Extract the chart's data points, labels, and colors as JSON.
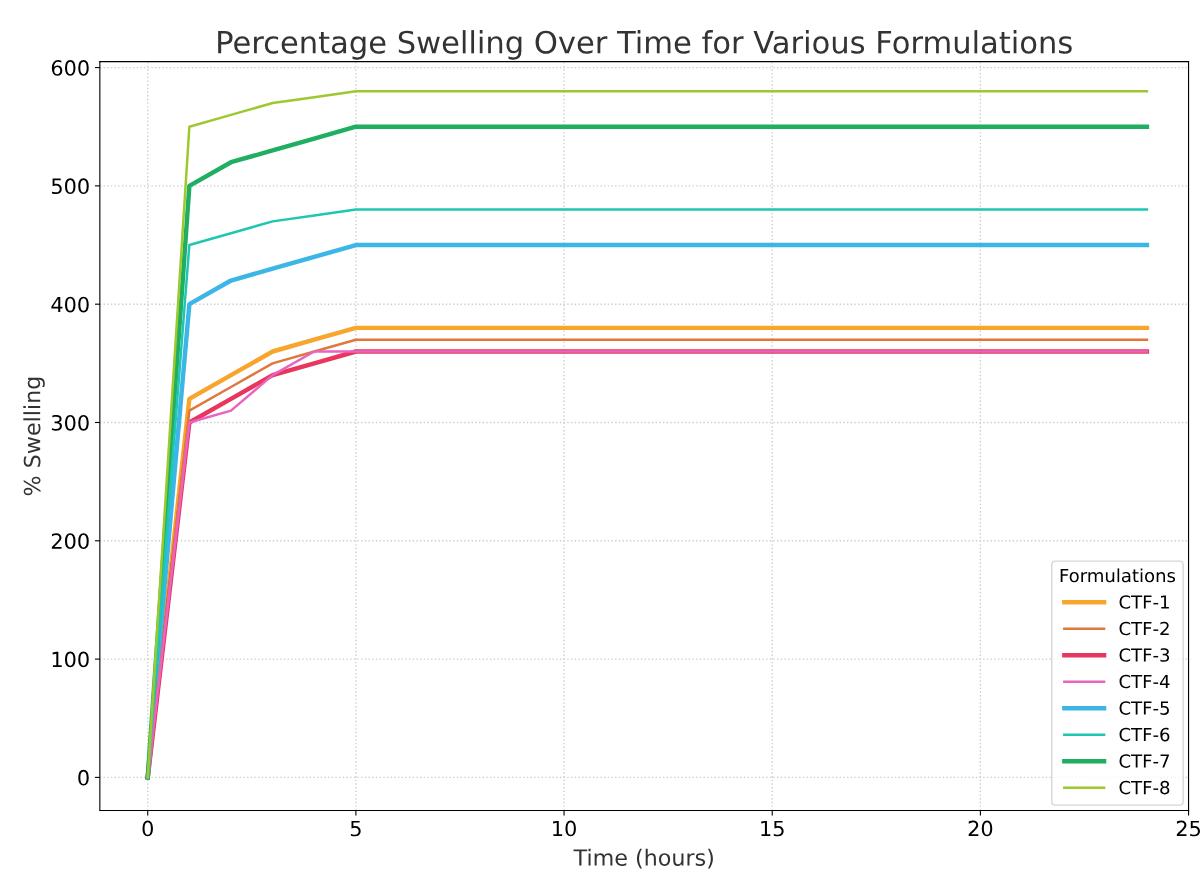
{
  "chart_data": {
    "type": "line",
    "title": "Percentage Swelling Over Time for Various Formulations",
    "xlabel": "Time (hours)",
    "ylabel": "% Swelling",
    "legend_title": "Formulations",
    "legend": "bottom right",
    "grid": true,
    "line_style": "solid",
    "x": [
      0,
      1,
      2,
      3,
      4,
      5,
      24
    ],
    "xlim": [
      -1.15,
      25
    ],
    "xticks": [
      0,
      5,
      10,
      15,
      20,
      25
    ],
    "ylim": [
      -28,
      605
    ],
    "yticks": [
      0,
      100,
      200,
      300,
      400,
      500,
      600
    ],
    "series": [
      {
        "name": "CTF-1",
        "color": "#f7a52c",
        "values": [
          0,
          320,
          340,
          360,
          370,
          380,
          380
        ]
      },
      {
        "name": "CTF-2",
        "color": "#e0773f",
        "values": [
          0,
          310,
          330,
          350,
          360,
          370,
          370
        ]
      },
      {
        "name": "CTF-3",
        "color": "#e8365e",
        "values": [
          0,
          300,
          320,
          340,
          350,
          360,
          360
        ]
      },
      {
        "name": "CTF-4",
        "color": "#e963c0",
        "values": [
          0,
          300,
          310,
          340,
          360,
          360,
          360
        ]
      },
      {
        "name": "CTF-5",
        "color": "#3bb6e6",
        "values": [
          0,
          400,
          420,
          430,
          440,
          450,
          450
        ]
      },
      {
        "name": "CTF-6",
        "color": "#1fc7b2",
        "values": [
          0,
          450,
          460,
          470,
          475,
          480,
          480
        ]
      },
      {
        "name": "CTF-7",
        "color": "#1fae62",
        "values": [
          0,
          500,
          520,
          530,
          540,
          550,
          550
        ]
      },
      {
        "name": "CTF-8",
        "color": "#9cc92e",
        "values": [
          0,
          550,
          560,
          570,
          575,
          580,
          580
        ]
      }
    ]
  }
}
